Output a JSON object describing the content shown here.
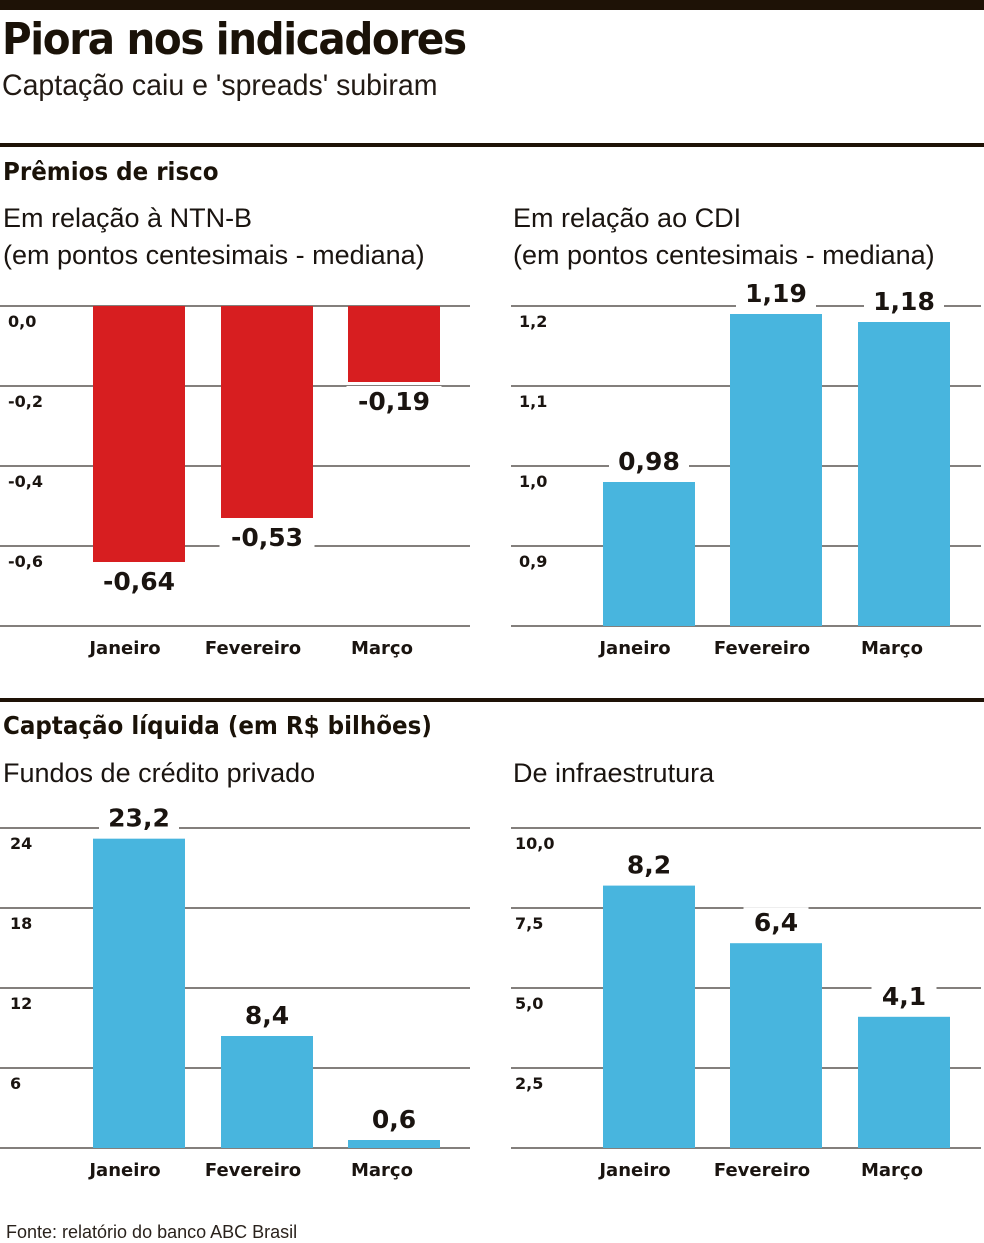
{
  "header": {
    "title": "Piora nos indicadores",
    "subtitle": "Captação caiu e 'spreads' subiram"
  },
  "sections": [
    {
      "title": "Prêmios de risco"
    },
    {
      "title": "Captação líquida (em R$ bilhões)"
    }
  ],
  "chart_subtitles": {
    "ntnb_line1": "Em relação à NTN-B",
    "ntnb_line2": "(em pontos centesimais - mediana)",
    "cdi_line1": "Em relação ao CDI",
    "cdi_line2": "(em pontos centesimais - mediana)",
    "credito": "Fundos de crédito privado",
    "infra": "De infraestrutura"
  },
  "colors": {
    "negative_bar": "#d71e20",
    "positive_bar": "#48b5de",
    "grid": "#5a5550",
    "text": "#1a1410"
  },
  "source": "Fonte: relatório do banco ABC Brasil",
  "chart_data": [
    {
      "id": "ntnb",
      "type": "bar",
      "title": "Em relação à NTN-B (em pontos centesimais - mediana)",
      "section": "Prêmios de risco",
      "categories": [
        "Janeiro",
        "Fevereiro",
        "Março"
      ],
      "values": [
        -0.64,
        -0.53,
        -0.19
      ],
      "value_labels": [
        "-0,64",
        "-0,53",
        "-0,19"
      ],
      "yticks": [
        0.0,
        -0.2,
        -0.4,
        -0.6
      ],
      "ytick_labels": [
        "0,0",
        "-0,2",
        "-0,4",
        "-0,6"
      ],
      "ylim": [
        -0.8,
        0.0
      ],
      "color": "#d71e20",
      "grid": true,
      "xlabel": "",
      "ylabel": ""
    },
    {
      "id": "cdi",
      "type": "bar",
      "title": "Em relação ao CDI (em pontos centesimais - mediana)",
      "section": "Prêmios de risco",
      "categories": [
        "Janeiro",
        "Fevereiro",
        "Março"
      ],
      "values": [
        0.98,
        1.19,
        1.18
      ],
      "value_labels": [
        "0,98",
        "1,19",
        "1,18"
      ],
      "yticks": [
        1.2,
        1.1,
        1.0,
        0.9
      ],
      "ytick_labels": [
        "1,2",
        "1,1",
        "1,0",
        "0,9"
      ],
      "ylim": [
        0.8,
        1.2
      ],
      "color": "#48b5de",
      "grid": true,
      "xlabel": "",
      "ylabel": ""
    },
    {
      "id": "credito",
      "type": "bar",
      "title": "Fundos de crédito privado",
      "section": "Captação líquida (em R$ bilhões)",
      "categories": [
        "Janeiro",
        "Fevereiro",
        "Março"
      ],
      "values": [
        23.2,
        8.4,
        0.6
      ],
      "value_labels": [
        "23,2",
        "8,4",
        "0,6"
      ],
      "yticks": [
        24,
        18,
        12,
        6
      ],
      "ytick_labels": [
        "24",
        "18",
        "12",
        "6"
      ],
      "ylim": [
        0,
        24
      ],
      "color": "#48b5de",
      "grid": true,
      "xlabel": "",
      "ylabel": ""
    },
    {
      "id": "infra",
      "type": "bar",
      "title": "De infraestrutura",
      "section": "Captação líquida (em R$ bilhões)",
      "categories": [
        "Janeiro",
        "Fevereiro",
        "Março"
      ],
      "values": [
        8.2,
        6.4,
        4.1
      ],
      "value_labels": [
        "8,2",
        "6,4",
        "4,1"
      ],
      "yticks": [
        10.0,
        7.5,
        5.0,
        2.5
      ],
      "ytick_labels": [
        "10,0",
        "7,5",
        "5,0",
        "2,5"
      ],
      "ylim": [
        0,
        10
      ],
      "color": "#48b5de",
      "grid": true,
      "xlabel": "",
      "ylabel": ""
    }
  ]
}
